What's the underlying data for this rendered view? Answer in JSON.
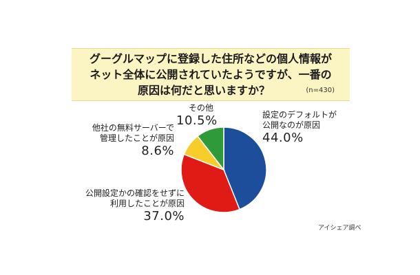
{
  "title_lines": [
    "グーグルマップに登録した住所などの個人情報が",
    "ネット全体に公開されていたようですが、一番の",
    "原因は何だと思いますか？"
  ],
  "sample_size": "(n=430)",
  "source": "アイシェア調べ",
  "chart_data": {
    "type": "pie",
    "start_angle_deg": 0,
    "direction": "clockwise",
    "slices": [
      {
        "label_lines": [
          "設定のデフォルトが",
          "公開なのが原因"
        ],
        "value": 44.0,
        "value_label": "44.0%",
        "color": "#1c4e9c"
      },
      {
        "label_lines": [
          "公開設定かの確認をせずに",
          "利用したことが原因"
        ],
        "value": 37.0,
        "value_label": "37.0%",
        "color": "#e01b16"
      },
      {
        "label_lines": [
          "他社の無料サーバーで",
          "管理したことが原因"
        ],
        "value": 8.6,
        "value_label": "8.6%",
        "color": "#f7cd2a"
      },
      {
        "label_lines": [
          "その他"
        ],
        "value": 10.5,
        "value_label": "10.5%",
        "color": "#2f9a3a"
      }
    ]
  }
}
